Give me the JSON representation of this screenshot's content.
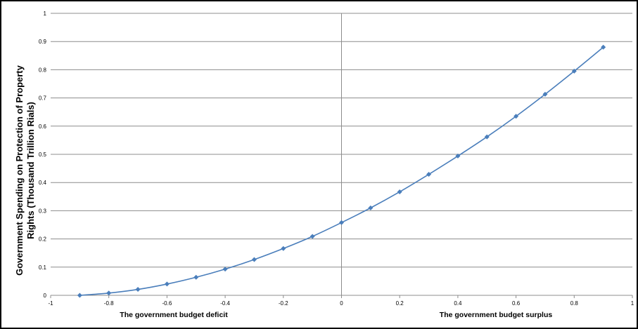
{
  "chart_data": {
    "type": "line",
    "title": "",
    "ylabel_lines": [
      "Government Spending on Protection of Property",
      "Rights (Thousand Trillion Rials)"
    ],
    "xlabel_left": "The government budget deficit",
    "xlabel_right": "The government budget surplus",
    "xlim": [
      -1,
      1
    ],
    "ylim": [
      0,
      1
    ],
    "x_ticks": [
      "-1",
      "-0.8",
      "-0.6",
      "-0.4",
      "-0.2",
      "0",
      "0.2",
      "0.4",
      "0.6",
      "0.8",
      "1"
    ],
    "y_ticks": [
      "0",
      "0.1",
      "0.2",
      "0.3",
      "0.4",
      "0.5",
      "0.6",
      "0.7",
      "0.8",
      "0.9",
      "1"
    ],
    "grid": "horizontal",
    "series": [
      {
        "color": "#4a7ebb",
        "marker": "diamond",
        "x": [
          -0.9,
          -0.8,
          -0.7,
          -0.6,
          -0.5,
          -0.4,
          -0.3,
          -0.2,
          -0.1,
          0,
          0.1,
          0.2,
          0.3,
          0.4,
          0.5,
          0.6,
          0.7,
          0.8,
          0.9
        ],
        "y": [
          0.0,
          0.008,
          0.021,
          0.04,
          0.064,
          0.093,
          0.127,
          0.166,
          0.209,
          0.258,
          0.31,
          0.367,
          0.429,
          0.494,
          0.562,
          0.635,
          0.713,
          0.795,
          0.88
        ]
      }
    ]
  }
}
